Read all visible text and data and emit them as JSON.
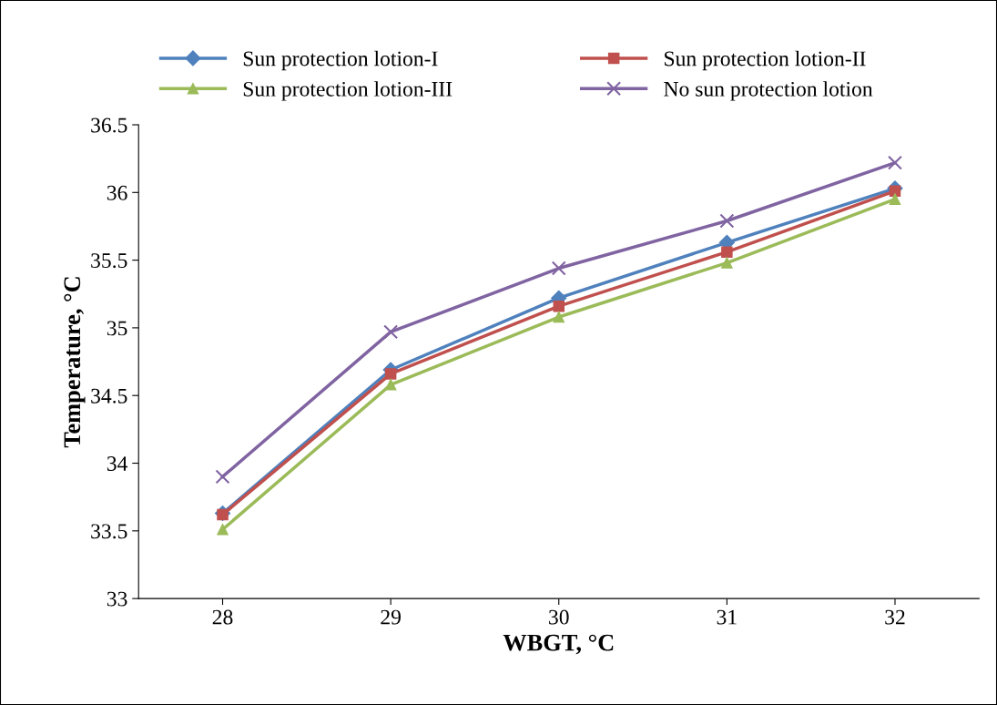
{
  "chart_data": {
    "type": "line",
    "xlabel": "WBGT, °C",
    "ylabel": "Temperature, °C",
    "categories": [
      "28",
      "29",
      "30",
      "31",
      "32"
    ],
    "series": [
      {
        "name": "Sun protection lotion-I",
        "color": "#4f81bd",
        "marker": "diamond",
        "values": [
          33.63,
          34.69,
          35.22,
          35.63,
          36.03
        ]
      },
      {
        "name": "Sun protection lotion-II",
        "color": "#c0504d",
        "marker": "square",
        "values": [
          33.62,
          34.66,
          35.16,
          35.56,
          36.01
        ]
      },
      {
        "name": "Sun protection lotion-III",
        "color": "#9bbb59",
        "marker": "triangle",
        "values": [
          33.51,
          34.58,
          35.08,
          35.48,
          35.95
        ]
      },
      {
        "name": "No sun protection lotion",
        "color": "#8064a2",
        "marker": "cross",
        "values": [
          33.9,
          34.97,
          35.44,
          35.79,
          36.22
        ]
      }
    ],
    "ylim": [
      33,
      36.5
    ],
    "yticks": [
      33,
      33.5,
      34,
      34.5,
      35,
      35.5,
      36,
      36.5
    ],
    "grid": false,
    "legend": "top",
    "line_style": "solid"
  }
}
